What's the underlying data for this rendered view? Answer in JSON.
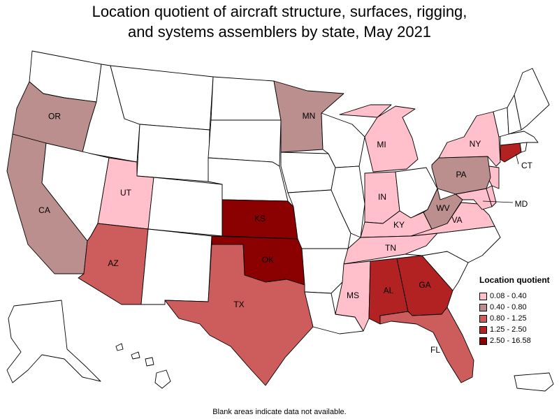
{
  "title_line1": "Location quotient of aircraft structure, surfaces, rigging,",
  "title_line2": "and systems assemblers by state, May 2021",
  "legend": {
    "title": "Location quotient",
    "items": [
      {
        "label": "0.08 - 0.40",
        "color": "#ffc0cb"
      },
      {
        "label": "0.40 - 0.80",
        "color": "#bc8f8f"
      },
      {
        "label": "0.80 - 1.25",
        "color": "#cd5c5c"
      },
      {
        "label": "1.25 - 2.50",
        "color": "#b22222"
      },
      {
        "label": "2.50 - 16.58",
        "color": "#8b0000"
      }
    ]
  },
  "no_data_color": "#ffffff",
  "states": {
    "WA": {
      "bin": null
    },
    "OR": {
      "label": "OR",
      "bin": 1
    },
    "CA": {
      "label": "CA",
      "bin": 1
    },
    "ID": {
      "bin": null
    },
    "NV": {
      "bin": null
    },
    "MT": {
      "bin": null
    },
    "WY": {
      "bin": null
    },
    "UT": {
      "label": "UT",
      "bin": 0
    },
    "AZ": {
      "label": "AZ",
      "bin": 2
    },
    "CO": {
      "bin": null
    },
    "NM": {
      "bin": null
    },
    "ND": {
      "bin": null
    },
    "SD": {
      "bin": null
    },
    "NE": {
      "bin": null
    },
    "KS": {
      "label": "KS",
      "bin": 4
    },
    "OK": {
      "label": "OK",
      "bin": 4
    },
    "TX": {
      "label": "TX",
      "bin": 2
    },
    "MN": {
      "label": "MN",
      "bin": 1
    },
    "IA": {
      "bin": null
    },
    "MO": {
      "bin": null
    },
    "AR": {
      "bin": null
    },
    "LA": {
      "bin": null
    },
    "WI": {
      "bin": null
    },
    "IL": {
      "bin": null
    },
    "MI": {
      "label": "MI",
      "bin": 0
    },
    "IN": {
      "label": "IN",
      "bin": 0
    },
    "OH": {
      "bin": null
    },
    "KY": {
      "label": "KY",
      "bin": 0
    },
    "TN": {
      "label": "TN",
      "bin": 0
    },
    "MS": {
      "label": "MS",
      "bin": 0
    },
    "AL": {
      "label": "AL",
      "bin": 3
    },
    "GA": {
      "label": "GA",
      "bin": 3
    },
    "FL": {
      "label": "FL",
      "bin": 2
    },
    "SC": {
      "bin": null
    },
    "NC": {
      "bin": null
    },
    "VA": {
      "label": "VA",
      "bin": 0
    },
    "WV": {
      "label": "WV",
      "bin": 1
    },
    "PA": {
      "label": "PA",
      "bin": 1
    },
    "NY": {
      "label": "NY",
      "bin": 0
    },
    "MD": {
      "label": "MD",
      "bin": 0
    },
    "DE": {
      "bin": 0
    },
    "NJ": {
      "bin": 0
    },
    "CT": {
      "label": "CT",
      "bin": 3
    },
    "RI": {
      "bin": null
    },
    "MA": {
      "bin": null
    },
    "VT": {
      "bin": null
    },
    "NH": {
      "bin": null
    },
    "ME": {
      "bin": null
    },
    "AK": {
      "bin": null
    },
    "HI": {
      "bin": null
    },
    "PR": {
      "bin": null
    }
  },
  "footnote": "Blank areas indicate data not available."
}
